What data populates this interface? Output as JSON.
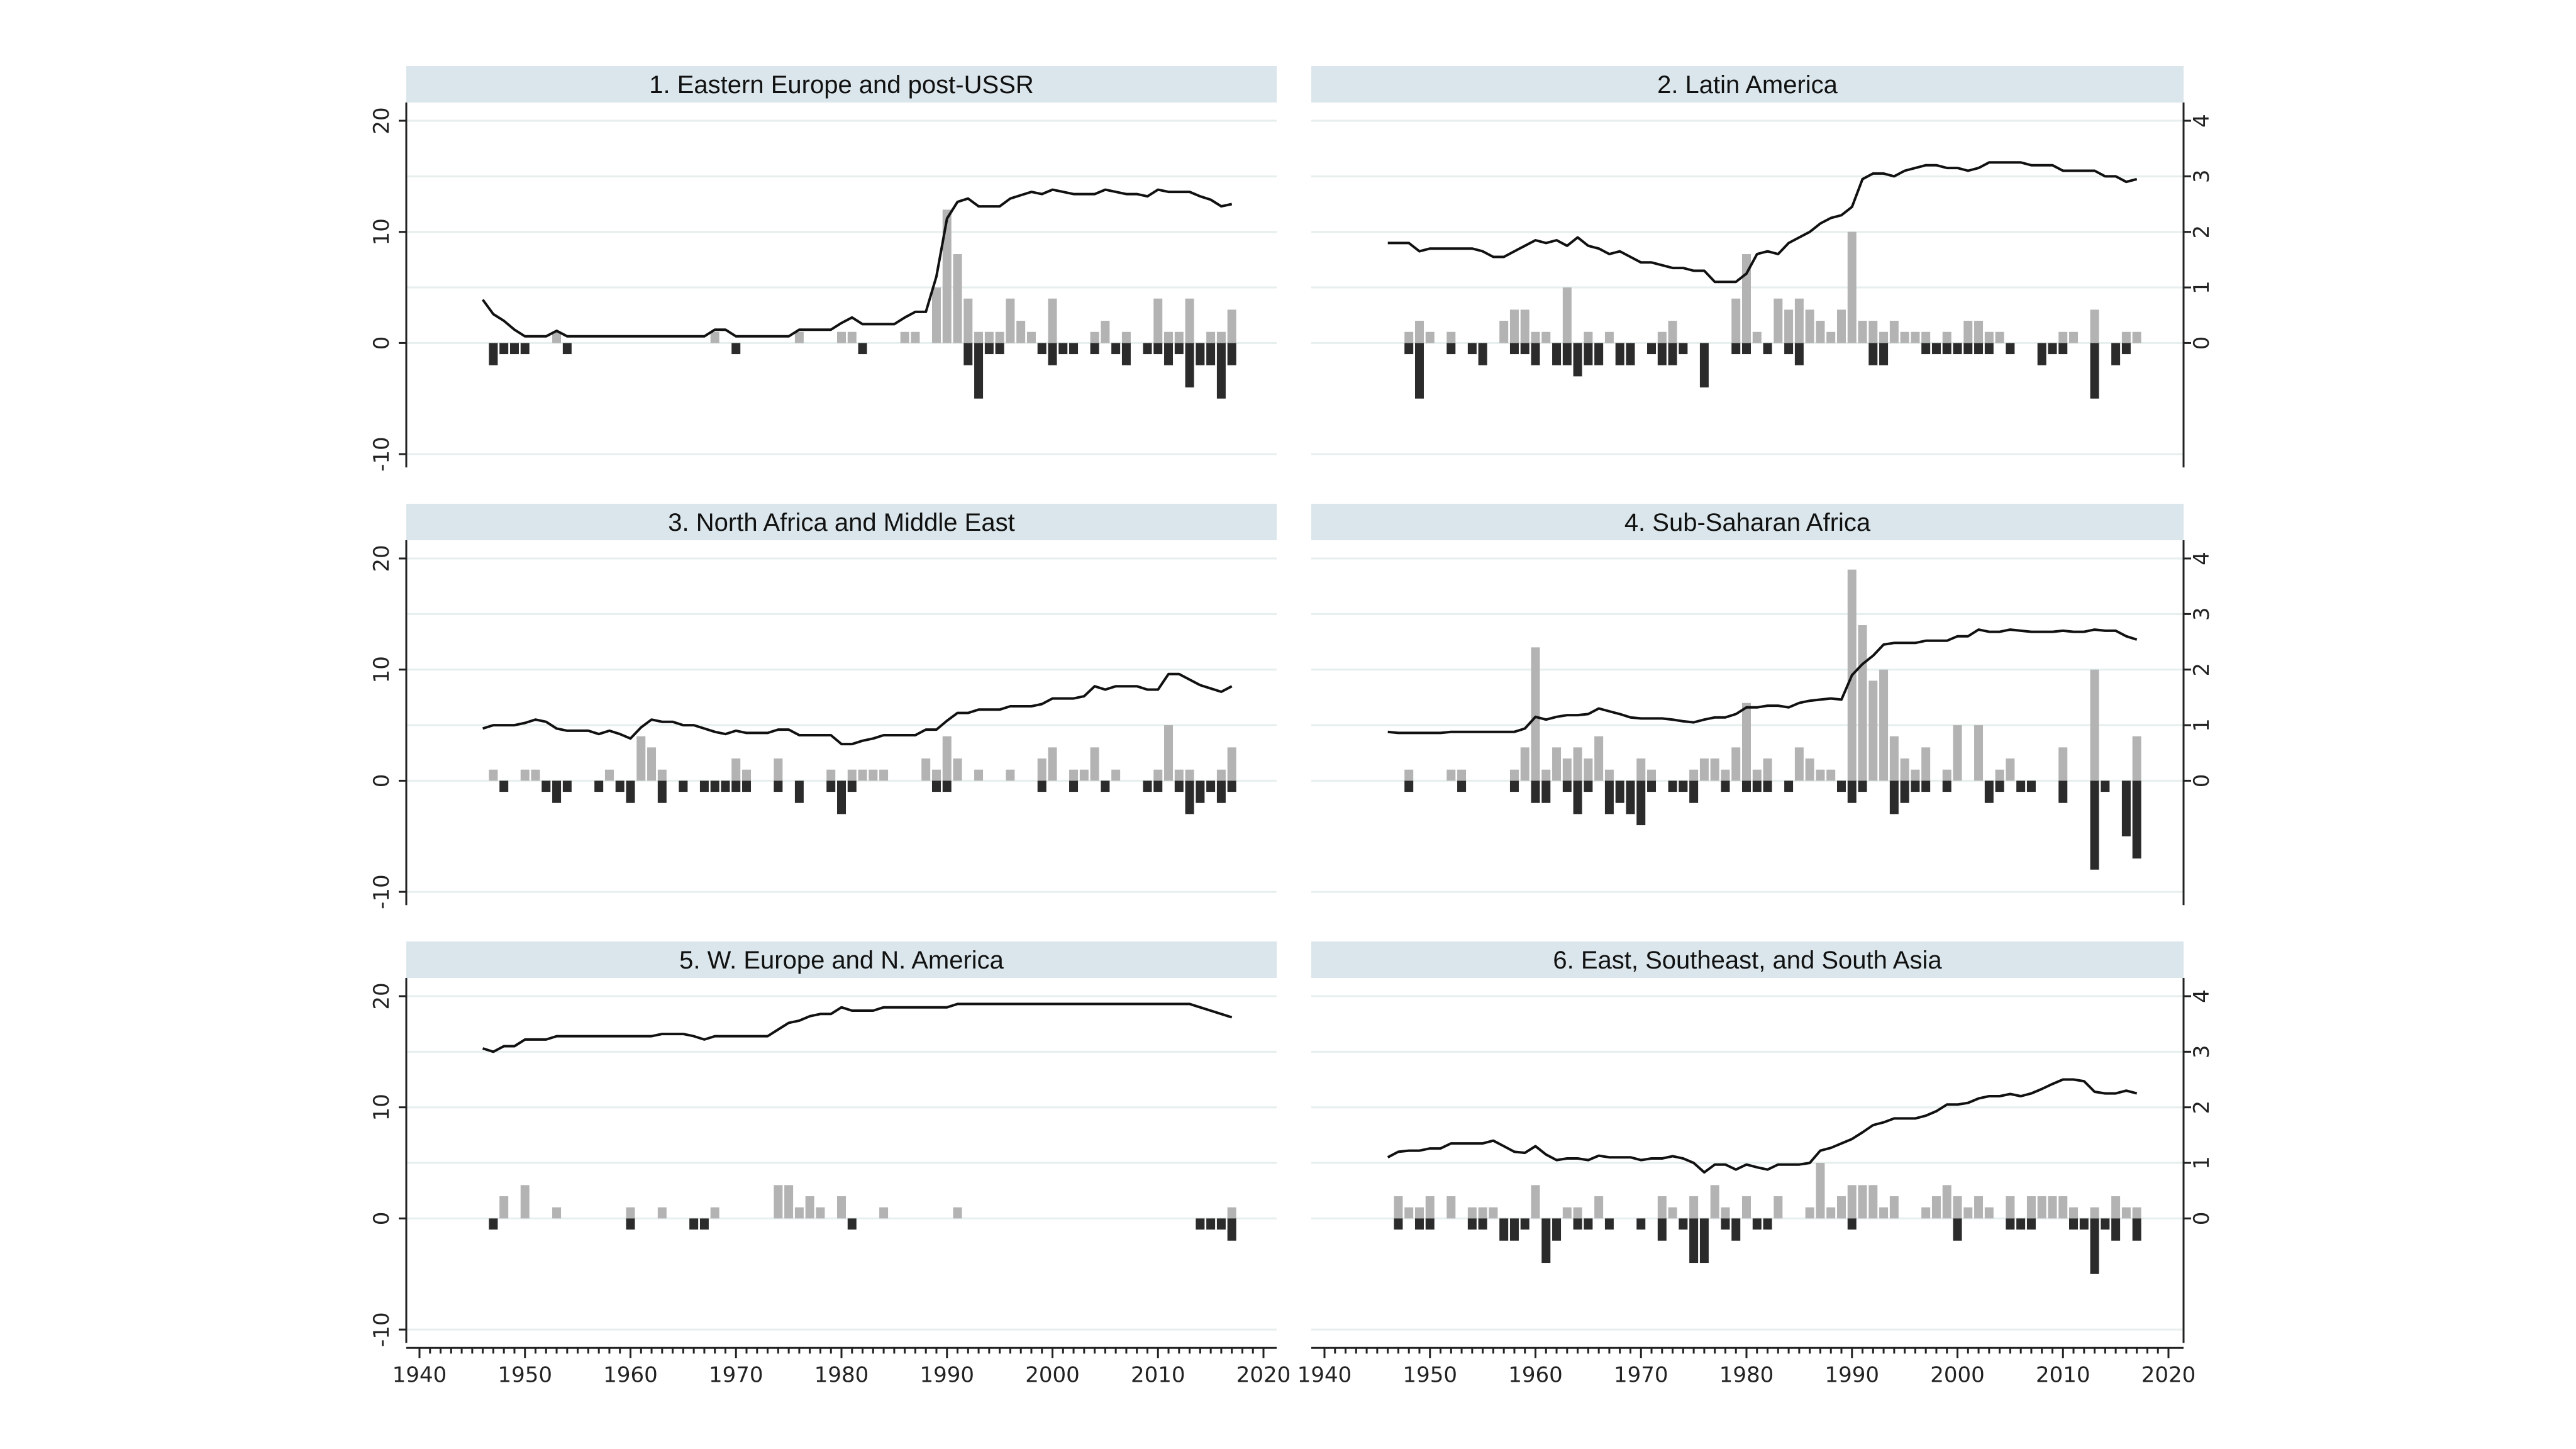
{
  "chart_data": {
    "type": "bar+line",
    "layout": "3x2 small multiples",
    "year_span": [
      1946,
      2017
    ],
    "xlim": [
      1940,
      2020
    ],
    "x_ticks": [
      "1940",
      "1950",
      "1960",
      "1970",
      "1980",
      "1990",
      "2000",
      "2010",
      "2020"
    ],
    "left_axis": {
      "ylim": [
        -11.2,
        21.6
      ],
      "ticks": [
        "20",
        "10",
        "0",
        "-10"
      ],
      "tick_values": [
        20,
        10,
        0,
        -10
      ]
    },
    "right_axis": {
      "ylim": [
        -2.24,
        4.32
      ],
      "ticks": [
        "4",
        "3",
        "2",
        "1",
        "0"
      ],
      "tick_values": [
        4,
        3,
        2,
        1,
        0
      ]
    },
    "grid_values_left_units": [
      20,
      15,
      10,
      5,
      0,
      -10
    ],
    "grid": true,
    "colors": {
      "header": "#dae6eb",
      "gain_bars": "#b3b3b3",
      "loss_bars": "#2b2b2b",
      "line": "#111111",
      "grid": "#e6eeee"
    },
    "panels": [
      {
        "title": "1. Eastern Europe and post-USSR",
        "line_axis": "left",
        "line": [
          3.9,
          2.6,
          2.0,
          1.2,
          0.6,
          0.6,
          0.6,
          1.1,
          0.6,
          0.6,
          0.6,
          0.6,
          0.6,
          0.6,
          0.6,
          0.6,
          0.6,
          0.6,
          0.6,
          0.6,
          0.6,
          0.6,
          1.2,
          1.2,
          0.6,
          0.6,
          0.6,
          0.6,
          0.6,
          0.6,
          1.2,
          1.2,
          1.2,
          1.2,
          1.8,
          2.3,
          1.7,
          1.7,
          1.7,
          1.7,
          2.3,
          2.8,
          2.8,
          6.0,
          11.2,
          12.7,
          13.0,
          12.3,
          12.3,
          12.3,
          13.0,
          13.3,
          13.6,
          13.4,
          13.8,
          13.6,
          13.4,
          13.4,
          13.4,
          13.8,
          13.6,
          13.4,
          13.4,
          13.2,
          13.8,
          13.6,
          13.6,
          13.6,
          13.2,
          12.9,
          12.3,
          12.5
        ],
        "gains": {
          "1953": 1,
          "1968": 1,
          "1976": 1,
          "1980": 1,
          "1981": 1,
          "1986": 1,
          "1987": 1,
          "1989": 5,
          "1990": 12,
          "1991": 8,
          "1992": 4,
          "1993": 1,
          "1994": 1,
          "1995": 1,
          "1996": 4,
          "1997": 2,
          "1998": 1,
          "2000": 4,
          "2004": 1,
          "2005": 2,
          "2007": 1,
          "2010": 4,
          "2011": 1,
          "2012": 1,
          "2013": 4,
          "2015": 1,
          "2016": 1,
          "2017": 3
        },
        "losses": {
          "1947": -2,
          "1948": -1,
          "1949": -1,
          "1950": -1,
          "1954": -1,
          "1970": -1,
          "1982": -1,
          "1992": -2,
          "1993": -5,
          "1994": -1,
          "1995": -1,
          "1999": -1,
          "2000": -2,
          "2001": -1,
          "2002": -1,
          "2004": -1,
          "2006": -1,
          "2007": -2,
          "2009": -1,
          "2010": -1,
          "2011": -2,
          "2012": -1,
          "2013": -4,
          "2014": -2,
          "2015": -2,
          "2016": -5,
          "2017": -2
        }
      },
      {
        "title": "2. Latin America",
        "line_axis": "right",
        "line": [
          1.8,
          1.8,
          1.8,
          1.65,
          1.7,
          1.7,
          1.7,
          1.7,
          1.7,
          1.65,
          1.55,
          1.55,
          1.65,
          1.75,
          1.85,
          1.8,
          1.85,
          1.75,
          1.9,
          1.75,
          1.7,
          1.6,
          1.65,
          1.55,
          1.45,
          1.45,
          1.4,
          1.35,
          1.35,
          1.3,
          1.3,
          1.1,
          1.1,
          1.1,
          1.25,
          1.6,
          1.65,
          1.6,
          1.8,
          1.9,
          2.0,
          2.15,
          2.25,
          2.3,
          2.45,
          2.95,
          3.05,
          3.05,
          3.0,
          3.1,
          3.15,
          3.2,
          3.2,
          3.15,
          3.15,
          3.1,
          3.15,
          3.25,
          3.25,
          3.25,
          3.25,
          3.2,
          3.2,
          3.2,
          3.1,
          3.1,
          3.1,
          3.1,
          3.0,
          3.0,
          2.9,
          2.95
        ],
        "gains": {
          "1948": 1,
          "1949": 2,
          "1950": 1,
          "1952": 1,
          "1957": 2,
          "1958": 3,
          "1959": 3,
          "1960": 1,
          "1961": 1,
          "1963": 5,
          "1965": 1,
          "1967": 1,
          "1972": 1,
          "1973": 2,
          "1979": 4,
          "1980": 8,
          "1981": 1,
          "1983": 4,
          "1984": 3,
          "1985": 4,
          "1986": 3,
          "1987": 2,
          "1988": 1,
          "1989": 3,
          "1990": 10,
          "1991": 2,
          "1992": 2,
          "1993": 1,
          "1994": 2,
          "1995": 1,
          "1996": 1,
          "1997": 1,
          "1999": 1,
          "2001": 2,
          "2002": 2,
          "2003": 1,
          "2004": 1,
          "2010": 1,
          "2011": 1,
          "2013": 3,
          "2016": 1,
          "2017": 1
        },
        "losses": {
          "1948": -1,
          "1949": -5,
          "1952": -1,
          "1954": -1,
          "1955": -2,
          "1958": -1,
          "1959": -1,
          "1960": -2,
          "1962": -2,
          "1963": -2,
          "1964": -3,
          "1965": -2,
          "1966": -2,
          "1968": -2,
          "1969": -2,
          "1971": -1,
          "1972": -2,
          "1973": -2,
          "1974": -1,
          "1976": -4,
          "1979": -1,
          "1980": -1,
          "1982": -1,
          "1984": -1,
          "1985": -2,
          "1992": -2,
          "1993": -2,
          "1997": -1,
          "1998": -1,
          "1999": -1,
          "2000": -1,
          "2001": -1,
          "2002": -1,
          "2003": -1,
          "2005": -1,
          "2008": -2,
          "2009": -1,
          "2010": -1,
          "2013": -5,
          "2015": -2,
          "2016": -1
        }
      },
      {
        "title": "3. North Africa and Middle East",
        "line_axis": "left",
        "line": [
          4.7,
          5.0,
          5.0,
          5.0,
          5.2,
          5.5,
          5.3,
          4.7,
          4.5,
          4.5,
          4.5,
          4.2,
          4.5,
          4.2,
          3.8,
          4.8,
          5.5,
          5.3,
          5.3,
          5.0,
          5.0,
          4.7,
          4.4,
          4.2,
          4.5,
          4.3,
          4.3,
          4.3,
          4.6,
          4.6,
          4.1,
          4.1,
          4.1,
          4.1,
          3.3,
          3.3,
          3.6,
          3.8,
          4.1,
          4.1,
          4.1,
          4.1,
          4.6,
          4.6,
          5.4,
          6.1,
          6.1,
          6.4,
          6.4,
          6.4,
          6.7,
          6.7,
          6.7,
          6.9,
          7.4,
          7.4,
          7.4,
          7.6,
          8.5,
          8.2,
          8.5,
          8.5,
          8.5,
          8.2,
          8.2,
          9.6,
          9.6,
          9.1,
          8.6,
          8.3,
          8.0,
          8.5
        ],
        "gains": {
          "1947": 1,
          "1950": 1,
          "1951": 1,
          "1958": 1,
          "1961": 4,
          "1962": 3,
          "1963": 1,
          "1970": 2,
          "1971": 1,
          "1974": 2,
          "1979": 1,
          "1981": 1,
          "1982": 1,
          "1983": 1,
          "1984": 1,
          "1988": 2,
          "1989": 1,
          "1990": 4,
          "1991": 2,
          "1993": 1,
          "1996": 1,
          "1999": 2,
          "2000": 3,
          "2002": 1,
          "2003": 1,
          "2004": 3,
          "2006": 1,
          "2010": 1,
          "2011": 5,
          "2012": 1,
          "2013": 1,
          "2016": 1,
          "2017": 3
        },
        "losses": {
          "1948": -1,
          "1952": -1,
          "1953": -2,
          "1954": -1,
          "1957": -1,
          "1959": -1,
          "1960": -2,
          "1963": -2,
          "1965": -1,
          "1967": -1,
          "1968": -1,
          "1969": -1,
          "1970": -1,
          "1971": -1,
          "1974": -1,
          "1976": -2,
          "1979": -1,
          "1980": -3,
          "1981": -1,
          "1989": -1,
          "1990": -1,
          "1999": -1,
          "2002": -1,
          "2005": -1,
          "2009": -1,
          "2010": -1,
          "2012": -1,
          "2013": -3,
          "2014": -2,
          "2015": -1,
          "2016": -2,
          "2017": -1
        }
      },
      {
        "title": "4. Sub-Saharan Africa",
        "line_axis": "right",
        "line": [
          0.88,
          0.86,
          0.86,
          0.86,
          0.86,
          0.86,
          0.88,
          0.88,
          0.88,
          0.88,
          0.88,
          0.88,
          0.88,
          0.94,
          1.15,
          1.1,
          1.15,
          1.18,
          1.18,
          1.2,
          1.3,
          1.25,
          1.2,
          1.14,
          1.12,
          1.12,
          1.12,
          1.1,
          1.07,
          1.05,
          1.1,
          1.14,
          1.14,
          1.2,
          1.32,
          1.32,
          1.35,
          1.35,
          1.32,
          1.4,
          1.44,
          1.46,
          1.48,
          1.46,
          1.9,
          2.1,
          2.25,
          2.45,
          2.48,
          2.48,
          2.48,
          2.52,
          2.52,
          2.52,
          2.6,
          2.6,
          2.72,
          2.68,
          2.68,
          2.72,
          2.7,
          2.68,
          2.68,
          2.68,
          2.7,
          2.68,
          2.68,
          2.72,
          2.7,
          2.7,
          2.6,
          2.54
        ],
        "gains": {
          "1948": 1,
          "1952": 1,
          "1953": 1,
          "1958": 1,
          "1959": 3,
          "1960": 12,
          "1961": 1,
          "1962": 3,
          "1963": 2,
          "1964": 3,
          "1965": 2,
          "1966": 4,
          "1967": 1,
          "1970": 2,
          "1971": 1,
          "1975": 1,
          "1976": 2,
          "1977": 2,
          "1978": 1,
          "1979": 3,
          "1980": 7,
          "1981": 1,
          "1982": 2,
          "1985": 3,
          "1986": 2,
          "1987": 1,
          "1988": 1,
          "1990": 19,
          "1991": 14,
          "1992": 9,
          "1993": 10,
          "1994": 4,
          "1995": 2,
          "1996": 1,
          "1997": 3,
          "1999": 1,
          "2000": 5,
          "2002": 5,
          "2004": 1,
          "2005": 2,
          "2010": 3,
          "2013": 10,
          "2017": 4
        },
        "losses": {
          "1948": -1,
          "1953": -1,
          "1958": -1,
          "1960": -2,
          "1961": -2,
          "1963": -1,
          "1964": -3,
          "1965": -1,
          "1967": -3,
          "1968": -2,
          "1969": -3,
          "1970": -4,
          "1971": -1,
          "1973": -1,
          "1974": -1,
          "1975": -2,
          "1978": -1,
          "1980": -1,
          "1981": -1,
          "1982": -1,
          "1984": -1,
          "1989": -1,
          "1990": -2,
          "1991": -1,
          "1994": -3,
          "1995": -2,
          "1996": -1,
          "1997": -1,
          "1999": -1,
          "2003": -2,
          "2004": -1,
          "2006": -1,
          "2007": -1,
          "2010": -2,
          "2013": -8,
          "2014": -1,
          "2016": -5,
          "2017": -7
        }
      },
      {
        "title": "5. W. Europe and N. America",
        "line_axis": "left",
        "line": [
          15.3,
          15.0,
          15.5,
          15.5,
          16.1,
          16.1,
          16.1,
          16.4,
          16.4,
          16.4,
          16.4,
          16.4,
          16.4,
          16.4,
          16.4,
          16.4,
          16.4,
          16.6,
          16.6,
          16.6,
          16.4,
          16.1,
          16.4,
          16.4,
          16.4,
          16.4,
          16.4,
          16.4,
          17.0,
          17.6,
          17.8,
          18.2,
          18.4,
          18.4,
          19.0,
          18.7,
          18.7,
          18.7,
          19.0,
          19.0,
          19.0,
          19.0,
          19.0,
          19.0,
          19.0,
          19.3,
          19.3,
          19.3,
          19.3,
          19.3,
          19.3,
          19.3,
          19.3,
          19.3,
          19.3,
          19.3,
          19.3,
          19.3,
          19.3,
          19.3,
          19.3,
          19.3,
          19.3,
          19.3,
          19.3,
          19.3,
          19.3,
          19.3,
          19.0,
          18.7,
          18.4,
          18.1
        ],
        "gains": {
          "1948": 2,
          "1950": 3,
          "1953": 1,
          "1960": 1,
          "1963": 1,
          "1968": 1,
          "1974": 3,
          "1975": 3,
          "1976": 1,
          "1977": 2,
          "1978": 1,
          "1980": 2,
          "1984": 1,
          "1991": 1,
          "2017": 1
        },
        "losses": {
          "1947": -1,
          "1960": -1,
          "1966": -1,
          "1967": -1,
          "1981": -1,
          "2014": -1,
          "2015": -1,
          "2016": -1,
          "2017": -2
        }
      },
      {
        "title": "6. East, Southeast, and South Asia",
        "line_axis": "right",
        "line": [
          1.1,
          1.2,
          1.22,
          1.22,
          1.26,
          1.26,
          1.35,
          1.35,
          1.35,
          1.35,
          1.4,
          1.3,
          1.2,
          1.18,
          1.3,
          1.15,
          1.05,
          1.08,
          1.08,
          1.05,
          1.13,
          1.1,
          1.1,
          1.1,
          1.05,
          1.08,
          1.08,
          1.12,
          1.08,
          1.0,
          0.83,
          0.97,
          0.97,
          0.88,
          0.97,
          0.92,
          0.88,
          0.97,
          0.97,
          0.97,
          1.0,
          1.22,
          1.27,
          1.35,
          1.43,
          1.55,
          1.68,
          1.73,
          1.8,
          1.8,
          1.8,
          1.85,
          1.93,
          2.05,
          2.05,
          2.08,
          2.16,
          2.2,
          2.2,
          2.24,
          2.2,
          2.25,
          2.33,
          2.42,
          2.5,
          2.5,
          2.47,
          2.28,
          2.25,
          2.25,
          2.3,
          2.25
        ],
        "gains": {
          "1947": 2,
          "1948": 1,
          "1949": 1,
          "1950": 2,
          "1952": 2,
          "1954": 1,
          "1955": 1,
          "1956": 1,
          "1960": 3,
          "1963": 1,
          "1964": 1,
          "1966": 2,
          "1972": 2,
          "1973": 1,
          "1975": 2,
          "1977": 3,
          "1978": 1,
          "1980": 2,
          "1983": 2,
          "1986": 1,
          "1987": 5,
          "1988": 1,
          "1989": 2,
          "1990": 3,
          "1991": 3,
          "1992": 3,
          "1993": 1,
          "1994": 2,
          "1997": 1,
          "1998": 2,
          "1999": 3,
          "2000": 2,
          "2001": 1,
          "2002": 2,
          "2003": 1,
          "2005": 2,
          "2007": 2,
          "2008": 2,
          "2009": 2,
          "2010": 2,
          "2011": 1,
          "2013": 1,
          "2015": 2,
          "2016": 1,
          "2017": 1
        },
        "losses": {
          "1947": -1,
          "1949": -1,
          "1950": -1,
          "1954": -1,
          "1955": -1,
          "1957": -2,
          "1958": -2,
          "1959": -1,
          "1961": -4,
          "1962": -2,
          "1964": -1,
          "1965": -1,
          "1967": -1,
          "1970": -1,
          "1972": -2,
          "1974": -1,
          "1975": -4,
          "1976": -4,
          "1978": -1,
          "1979": -2,
          "1981": -1,
          "1982": -1,
          "1990": -1,
          "2000": -2,
          "2005": -1,
          "2006": -1,
          "2007": -1,
          "2011": -1,
          "2012": -1,
          "2013": -5,
          "2014": -1,
          "2015": -2,
          "2017": -2
        }
      }
    ]
  }
}
